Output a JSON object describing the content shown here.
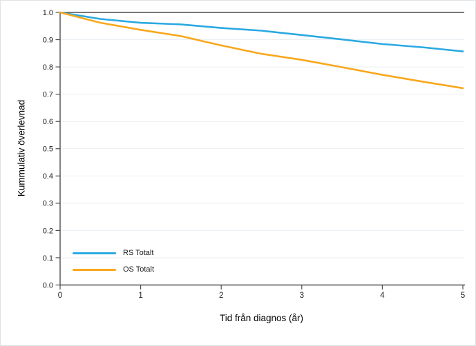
{
  "chart_data": {
    "type": "line",
    "title": "",
    "xlabel": "Tid från diagnos (år)",
    "ylabel": "Kummulativ överlevnad",
    "xlim": [
      0,
      5
    ],
    "ylim": [
      0.0,
      1.0
    ],
    "x_ticks": {
      "values": [
        0,
        1,
        2,
        3,
        4,
        5
      ],
      "labels": [
        "0",
        "1",
        "2",
        "3",
        "4",
        "5"
      ]
    },
    "y_ticks": {
      "values": [
        0.0,
        0.1,
        0.2,
        0.3,
        0.4,
        0.5,
        0.6,
        0.7,
        0.8,
        0.9,
        1.0
      ],
      "labels": [
        "0.0",
        "0.1",
        "0.2",
        "0.3",
        "0.4",
        "0.5",
        "0.6",
        "0.7",
        "0.8",
        "0.9",
        "1.0"
      ]
    },
    "grid": {
      "horizontal": true,
      "vertical": false,
      "color": "#e9eff4"
    },
    "legend": {
      "position": "inside-bottom-left",
      "entries": [
        "RS Totalt",
        "OS Totalt"
      ]
    },
    "x": [
      0,
      0.5,
      1,
      1.5,
      2,
      2.5,
      3,
      3.5,
      4,
      4.5,
      5
    ],
    "series": [
      {
        "name": "RS Totalt",
        "color": "#29a9e1",
        "values": [
          1.0,
          0.976,
          0.962,
          0.956,
          0.943,
          0.933,
          0.917,
          0.901,
          0.884,
          0.872,
          0.857
        ]
      },
      {
        "name": "OS Totalt",
        "color": "#f9a71c",
        "values": [
          1.0,
          0.962,
          0.936,
          0.913,
          0.879,
          0.848,
          0.826,
          0.799,
          0.771,
          0.746,
          0.722
        ]
      }
    ]
  },
  "colors": {
    "axis": "#4d4d4d",
    "tick_text": "#1a1a1a",
    "gridline": "#e9eff4",
    "background": "#ffffff",
    "border": "#dde2e6"
  }
}
